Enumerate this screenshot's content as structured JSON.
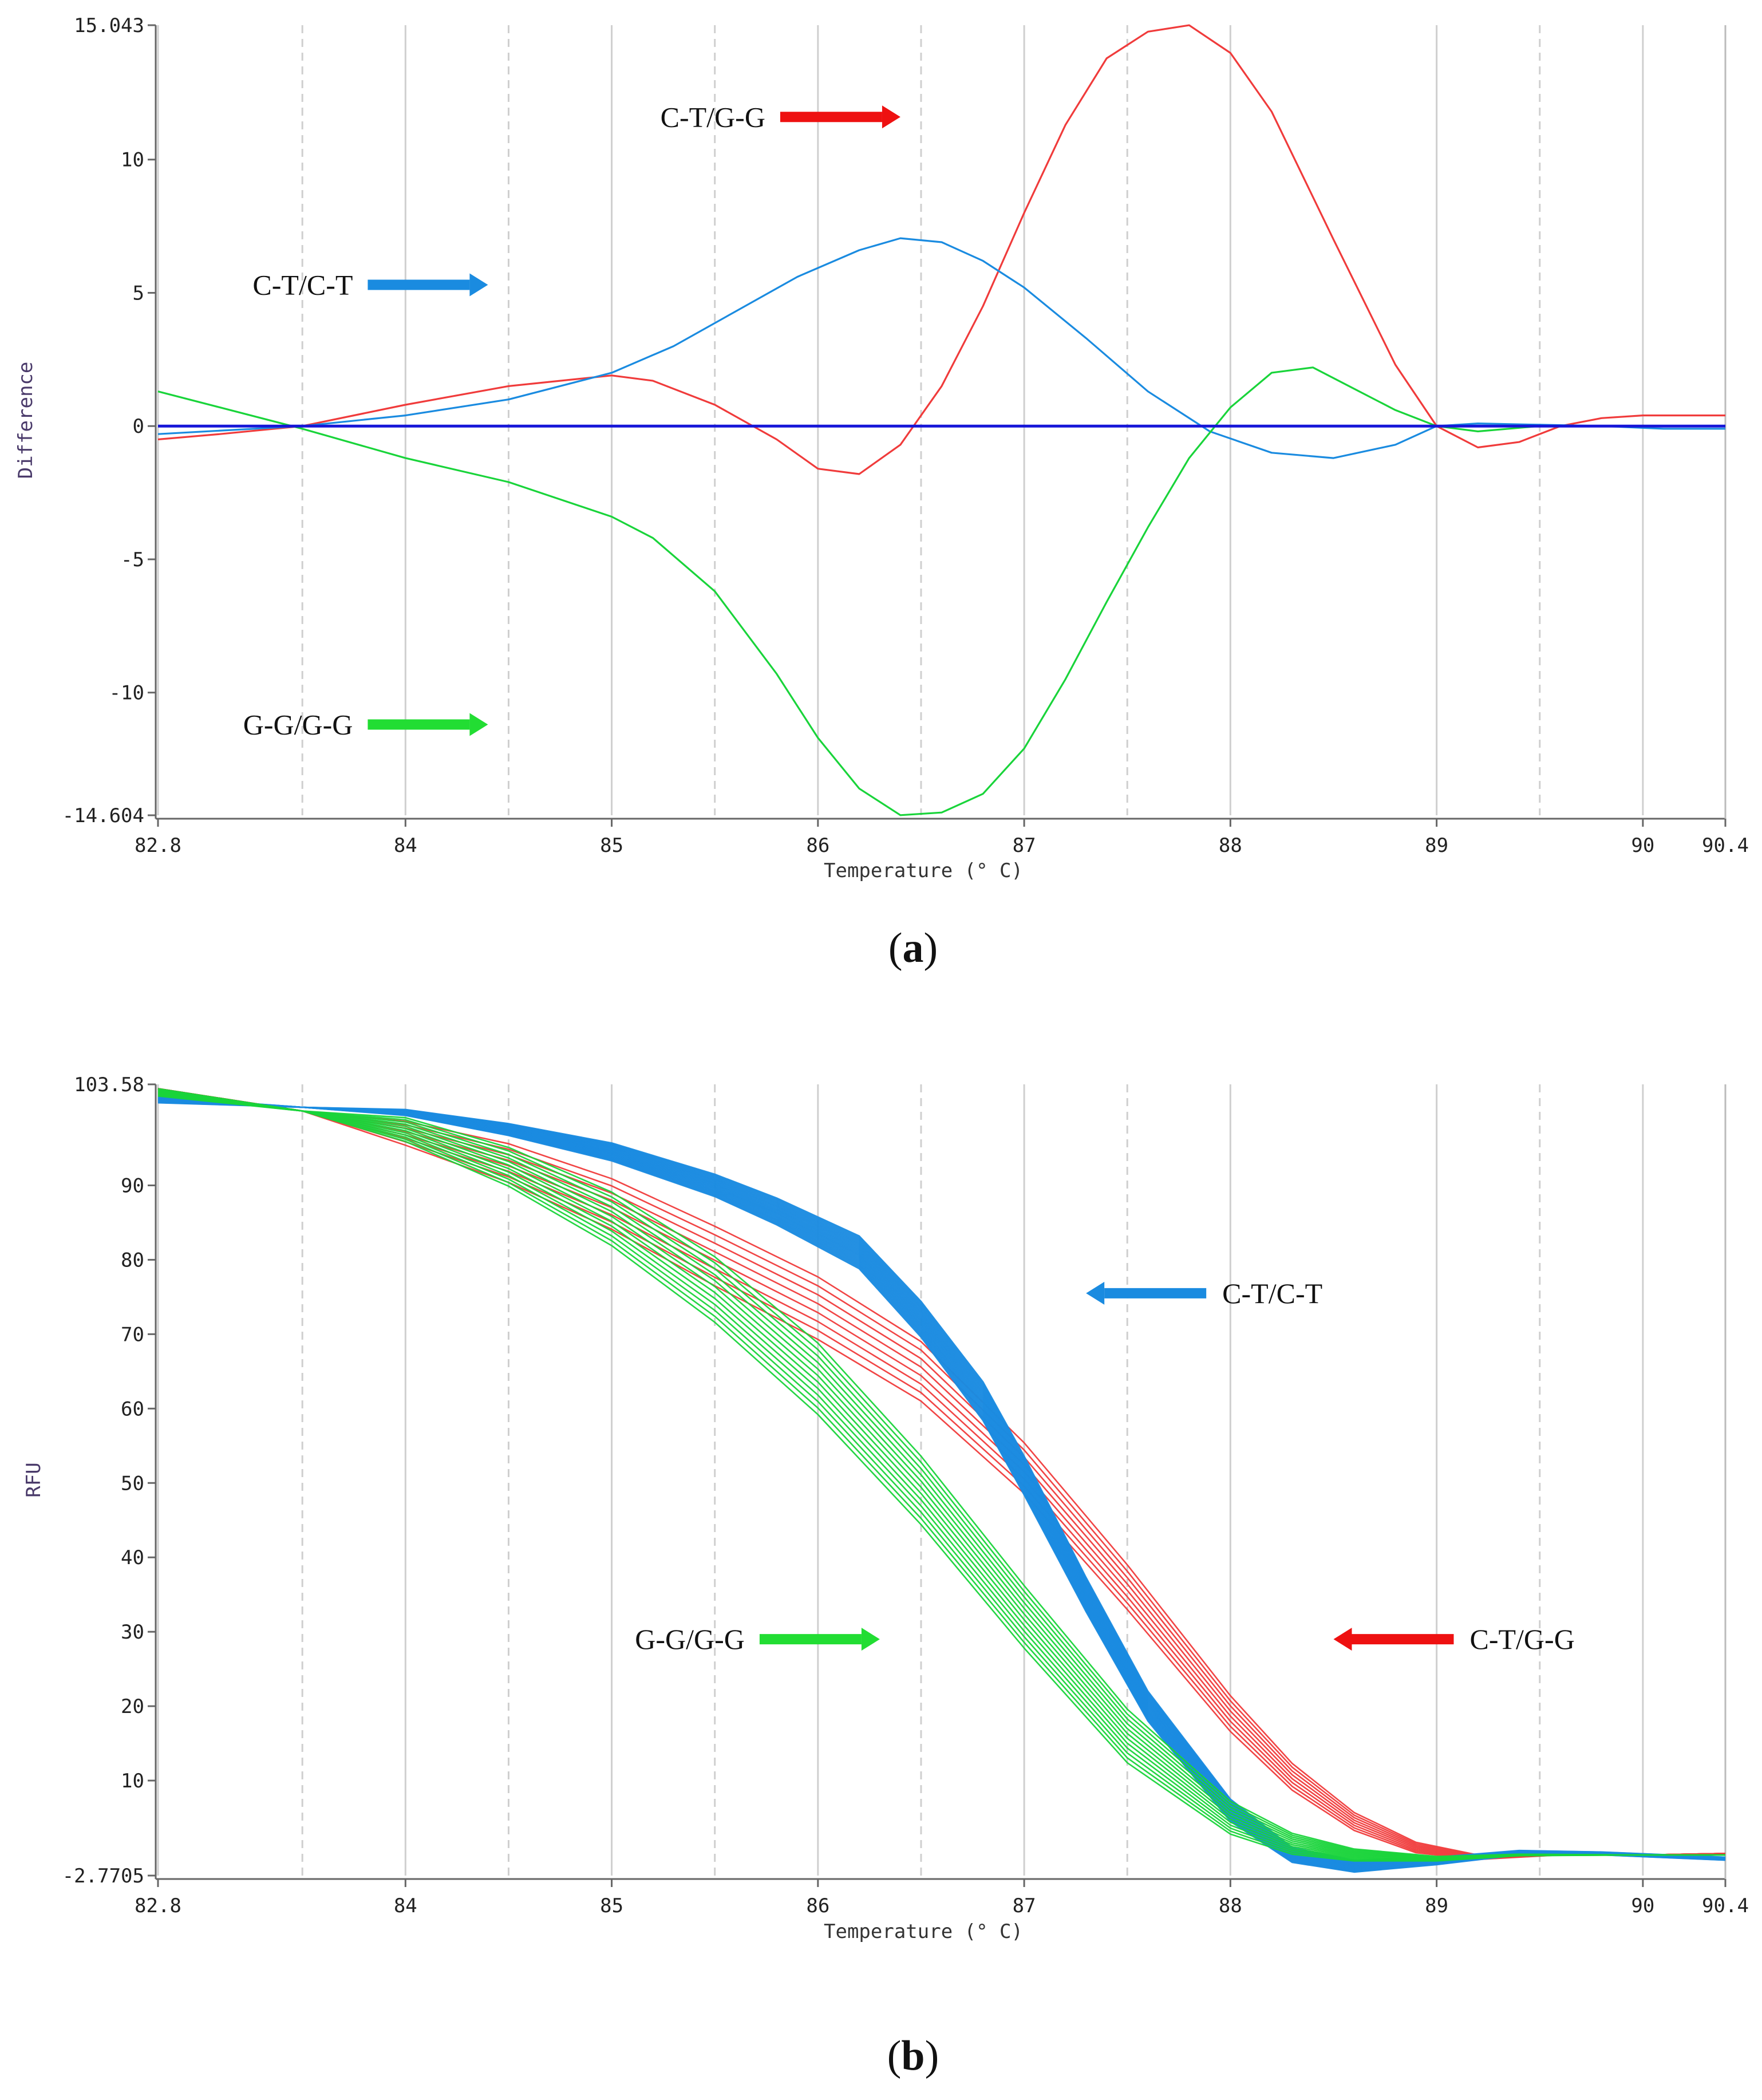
{
  "colors": {
    "red": "#f03b3b",
    "blue": "#1a8be0",
    "green": "#19d43a",
    "baseline": "#1616d8",
    "arrow_red": "#ee1111",
    "arrow_blue": "#1a8be0",
    "arrow_green": "#22dd33"
  },
  "chart_data": [
    {
      "type": "line",
      "panel_label": "(a)",
      "title": "",
      "xlabel": "Temperature (° C)",
      "ylabel": "Difference",
      "xlim": [
        82.8,
        90.4
      ],
      "ylim": [
        -14.604,
        15.043
      ],
      "x_ticks": [
        {
          "value": 82.8,
          "label": "82.8"
        },
        {
          "value": 84,
          "label": "84"
        },
        {
          "value": 85,
          "label": "85"
        },
        {
          "value": 86,
          "label": "86"
        },
        {
          "value": 87,
          "label": "87"
        },
        {
          "value": 88,
          "label": "88"
        },
        {
          "value": 89,
          "label": "89"
        },
        {
          "value": 90,
          "label": "90"
        },
        {
          "value": 90.4,
          "label": "90.4"
        }
      ],
      "y_ticks": [
        {
          "value": 15.043,
          "label": "15.043"
        },
        {
          "value": 10,
          "label": "10"
        },
        {
          "value": 5,
          "label": "5"
        },
        {
          "value": 0,
          "label": "0"
        },
        {
          "value": -5,
          "label": "-5"
        },
        {
          "value": -10,
          "label": "-10"
        },
        {
          "value": -14.604,
          "label": "-14.604"
        }
      ],
      "series": [
        {
          "name": "C-T/G-G",
          "color_key": "red",
          "x": [
            82.8,
            83.1,
            83.5,
            84.0,
            84.5,
            85.0,
            85.2,
            85.5,
            85.8,
            86.0,
            86.2,
            86.4,
            86.6,
            86.8,
            87.0,
            87.2,
            87.4,
            87.6,
            87.8,
            88.0,
            88.2,
            88.5,
            88.8,
            89.0,
            89.2,
            89.4,
            89.6,
            89.8,
            90.0,
            90.2,
            90.4
          ],
          "y": [
            -0.5,
            -0.3,
            0.0,
            0.8,
            1.5,
            1.9,
            1.7,
            0.8,
            -0.5,
            -1.6,
            -1.8,
            -0.7,
            1.5,
            4.5,
            8.0,
            11.3,
            13.8,
            14.8,
            15.04,
            14.0,
            11.8,
            7.0,
            2.3,
            0.0,
            -0.8,
            -0.6,
            0.0,
            0.3,
            0.4,
            0.4,
            0.4
          ]
        },
        {
          "name": "C-T/C-T",
          "color_key": "blue",
          "x": [
            82.8,
            83.5,
            84.0,
            84.5,
            85.0,
            85.3,
            85.6,
            85.9,
            86.2,
            86.4,
            86.6,
            86.8,
            87.0,
            87.3,
            87.6,
            87.9,
            88.2,
            88.5,
            88.8,
            89.0,
            89.2,
            89.5,
            89.8,
            90.1,
            90.4
          ],
          "y": [
            -0.3,
            0.0,
            0.4,
            1.0,
            2.0,
            3.0,
            4.3,
            5.6,
            6.6,
            7.05,
            6.9,
            6.2,
            5.2,
            3.3,
            1.3,
            -0.2,
            -1.0,
            -1.2,
            -0.7,
            0.0,
            0.1,
            0.05,
            0.0,
            -0.1,
            -0.1
          ]
        },
        {
          "name": "G-G/G-G",
          "color_key": "green",
          "x": [
            82.8,
            83.1,
            83.5,
            84.0,
            84.5,
            85.0,
            85.2,
            85.5,
            85.8,
            86.0,
            86.2,
            86.4,
            86.6,
            86.8,
            87.0,
            87.2,
            87.4,
            87.6,
            87.8,
            88.0,
            88.2,
            88.4,
            88.6,
            88.8,
            89.0,
            89.2,
            89.5,
            89.8,
            90.1,
            90.4
          ],
          "y": [
            1.3,
            0.7,
            -0.1,
            -1.2,
            -2.1,
            -3.4,
            -4.2,
            -6.2,
            -9.3,
            -11.7,
            -13.6,
            -14.6,
            -14.5,
            -13.8,
            -12.1,
            -9.5,
            -6.6,
            -3.8,
            -1.2,
            0.7,
            2.0,
            2.2,
            1.4,
            0.6,
            0.0,
            -0.2,
            0.0,
            0.0,
            0.0,
            0.0
          ]
        },
        {
          "name": "baseline",
          "color_key": "baseline",
          "x": [
            82.8,
            90.4
          ],
          "y": [
            0,
            0
          ]
        }
      ],
      "annotations": [
        {
          "text": "C-T/G-G",
          "color_key": "arrow_red",
          "direction": "right",
          "at_x": 86.4,
          "at_y": 11.6
        },
        {
          "text": "C-T/C-T",
          "color_key": "arrow_blue",
          "direction": "right",
          "at_x": 84.4,
          "at_y": 5.3
        },
        {
          "text": "G-G/G-G",
          "color_key": "arrow_green",
          "direction": "right",
          "at_x": 84.4,
          "at_y": -11.2
        }
      ]
    },
    {
      "type": "line",
      "panel_label": "(b)",
      "title": "",
      "xlabel": "Temperature (° C)",
      "ylabel": "RFU",
      "xlim": [
        82.8,
        90.4
      ],
      "ylim": [
        -2.7705,
        103.58
      ],
      "x_ticks": [
        {
          "value": 82.8,
          "label": "82.8"
        },
        {
          "value": 84,
          "label": "84"
        },
        {
          "value": 85,
          "label": "85"
        },
        {
          "value": 86,
          "label": "86"
        },
        {
          "value": 87,
          "label": "87"
        },
        {
          "value": 88,
          "label": "88"
        },
        {
          "value": 89,
          "label": "89"
        },
        {
          "value": 90,
          "label": "90"
        },
        {
          "value": 90.4,
          "label": "90.4"
        }
      ],
      "y_ticks": [
        {
          "value": 103.58,
          "label": "103.58"
        },
        {
          "value": 90,
          "label": "90"
        },
        {
          "value": 80,
          "label": "80"
        },
        {
          "value": 70,
          "label": "70"
        },
        {
          "value": 60,
          "label": "60"
        },
        {
          "value": 50,
          "label": "50"
        },
        {
          "value": 40,
          "label": "40"
        },
        {
          "value": 30,
          "label": "30"
        },
        {
          "value": 20,
          "label": "20"
        },
        {
          "value": 10,
          "label": "10"
        },
        {
          "value": -2.7705,
          "label": "-2.7705"
        }
      ],
      "groups": [
        {
          "name": "C-T/G-G",
          "color_key": "red",
          "count": 8,
          "x": [
            82.8,
            83.5,
            84.0,
            84.5,
            85.0,
            85.5,
            86.0,
            86.5,
            87.0,
            87.5,
            88.0,
            88.3,
            88.6,
            88.9,
            89.2,
            89.6,
            90.0,
            90.4
          ],
          "y": [
            103.0,
            100.0,
            97.0,
            93.0,
            87.5,
            80.5,
            73.5,
            65.0,
            52.0,
            36.0,
            19.0,
            10.5,
            4.5,
            1.0,
            -0.3,
            0.0,
            0.0,
            0.2
          ],
          "spread": [
            0.0,
            0.0,
            1.6,
            2.6,
            3.4,
            4.0,
            4.2,
            4.0,
            3.4,
            3.0,
            2.4,
            1.8,
            1.2,
            0.7,
            0.3,
            0.0,
            0.0,
            0.0
          ]
        },
        {
          "name": "C-T/C-T",
          "color_key": "blue",
          "count": 24,
          "x": [
            82.8,
            83.5,
            84.0,
            84.5,
            85.0,
            85.5,
            85.8,
            86.2,
            86.5,
            86.8,
            87.0,
            87.3,
            87.6,
            88.0,
            88.3,
            88.6,
            89.0,
            89.4,
            89.8,
            90.4
          ],
          "y": [
            101.5,
            100.5,
            99.8,
            97.5,
            94.5,
            90.0,
            86.5,
            81.0,
            72.0,
            61.0,
            51.0,
            35.0,
            20.0,
            6.0,
            0.0,
            -1.5,
            -0.8,
            0.3,
            0.2,
            -0.5
          ],
          "spread": [
            0.4,
            0.0,
            0.4,
            0.8,
            1.2,
            1.5,
            1.8,
            2.2,
            2.4,
            2.6,
            2.6,
            2.3,
            2.0,
            1.5,
            1.0,
            0.8,
            0.5,
            0.3,
            0.2,
            0.2
          ]
        },
        {
          "name": "G-G/G-G",
          "color_key": "green",
          "count": 12,
          "x": [
            82.8,
            83.5,
            84.0,
            84.5,
            85.0,
            85.5,
            86.0,
            86.5,
            87.0,
            87.5,
            88.0,
            88.3,
            88.6,
            89.0,
            89.4,
            90.0,
            90.4
          ],
          "y": [
            102.5,
            100.0,
            97.5,
            92.5,
            85.5,
            76.0,
            64.0,
            49.0,
            32.0,
            16.0,
            5.0,
            1.5,
            0.0,
            -0.5,
            0.0,
            0.0,
            0.0
          ],
          "spread": [
            0.5,
            0.0,
            1.6,
            2.6,
            3.6,
            4.4,
            4.8,
            4.6,
            4.2,
            3.6,
            2.2,
            1.4,
            0.8,
            0.3,
            0.1,
            0.0,
            0.0
          ]
        }
      ],
      "annotations": [
        {
          "text": "C-T/C-T",
          "color_key": "arrow_blue",
          "direction": "left",
          "at_x": 87.3,
          "at_y": 75.5
        },
        {
          "text": "G-G/G-G",
          "color_key": "arrow_green",
          "direction": "right",
          "at_x": 86.3,
          "at_y": 29.0
        },
        {
          "text": "C-T/G-G",
          "color_key": "arrow_red",
          "direction": "left",
          "at_x": 88.5,
          "at_y": 29.0
        }
      ]
    }
  ]
}
